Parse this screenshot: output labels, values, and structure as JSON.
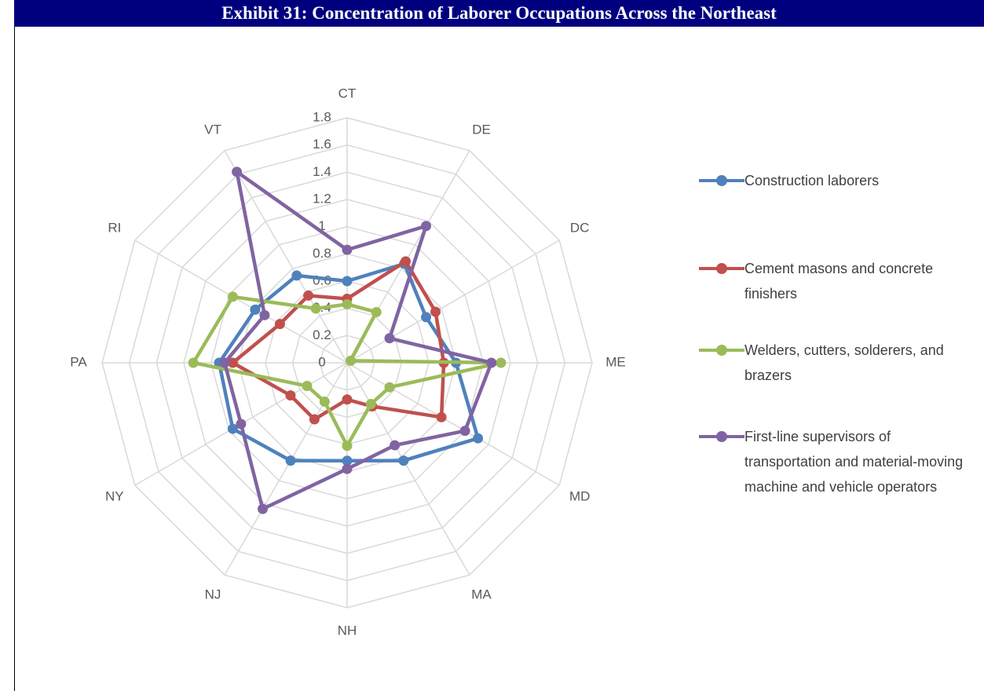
{
  "chart_data": {
    "type": "radar",
    "title": "Exhibit 31: Concentration of Laborer Occupations Across the Northeast",
    "categories": [
      "CT",
      "DE",
      "DC",
      "ME",
      "MD",
      "MA",
      "NH",
      "NJ",
      "NY",
      "PA",
      "RI",
      "VT"
    ],
    "ylim": [
      0,
      1.8
    ],
    "yticks": [
      0,
      0.2,
      0.4,
      0.6,
      0.8,
      1,
      1.2,
      1.4,
      1.6,
      1.8
    ],
    "grid": true,
    "legend": "right",
    "series": [
      {
        "name": "Construction laborers",
        "color": "#4f81bd",
        "values": [
          0.6,
          0.84,
          0.67,
          0.8,
          1.11,
          0.83,
          0.72,
          0.83,
          0.97,
          0.94,
          0.78,
          0.74
        ]
      },
      {
        "name": "Cement masons and concrete finishers",
        "color": "#c0504d",
        "values": [
          0.47,
          0.86,
          0.75,
          0.71,
          0.8,
          0.37,
          0.27,
          0.48,
          0.48,
          0.84,
          0.57,
          0.57
        ]
      },
      {
        "name": "Welders, cutters, solderers, and brazers",
        "color": "#9bbb59",
        "values": [
          0.43,
          0.43,
          0.03,
          1.13,
          0.36,
          0.35,
          0.61,
          0.33,
          0.34,
          1.13,
          0.97,
          0.46
        ]
      },
      {
        "name": "First-line supervisors of transportation and material-moving machine and vehicle operators",
        "color": "#8064a2",
        "values": [
          0.83,
          1.16,
          0.36,
          1.06,
          1.0,
          0.7,
          0.78,
          1.24,
          0.9,
          0.9,
          0.7,
          1.62
        ]
      }
    ]
  }
}
